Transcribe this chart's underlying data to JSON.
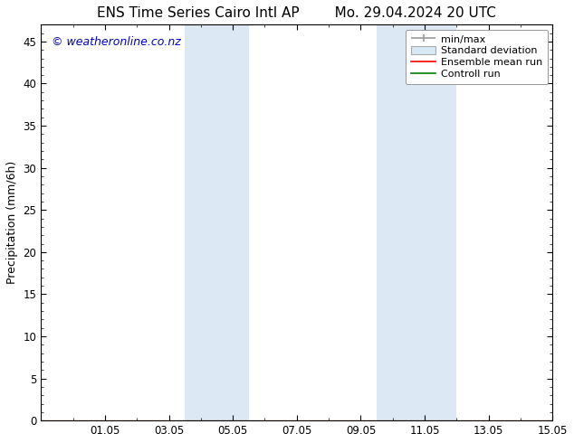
{
  "title_left": "ENS Time Series Cairo Intl AP",
  "title_right": "Mo. 29.04.2024 20 UTC",
  "ylabel": "Precipitation (mm/6h)",
  "ylim": [
    0,
    47
  ],
  "yticks": [
    0,
    5,
    10,
    15,
    20,
    25,
    30,
    35,
    40,
    45
  ],
  "xlim": [
    0,
    16
  ],
  "xtick_labels": [
    "01.05",
    "03.05",
    "05.05",
    "07.05",
    "09.05",
    "11.05",
    "13.05",
    "15.05"
  ],
  "xtick_positions": [
    2,
    4,
    6,
    8,
    10,
    12,
    14,
    16
  ],
  "shaded_regions": [
    {
      "x_start": 4.5,
      "x_end": 6.5
    },
    {
      "x_start": 10.5,
      "x_end": 13.0
    }
  ],
  "shaded_color": "#dce9f5",
  "background_color": "#ffffff",
  "watermark_text": "© weatheronline.co.nz",
  "watermark_color": "#0000cc",
  "legend_entries": [
    "min/max",
    "Standard deviation",
    "Ensemble mean run",
    "Controll run"
  ],
  "legend_colors_line": [
    "#999999",
    "#cccccc",
    "#ff0000",
    "#008000"
  ],
  "title_fontsize": 11,
  "axis_fontsize": 9,
  "tick_fontsize": 8.5,
  "watermark_fontsize": 9,
  "legend_fontsize": 8
}
